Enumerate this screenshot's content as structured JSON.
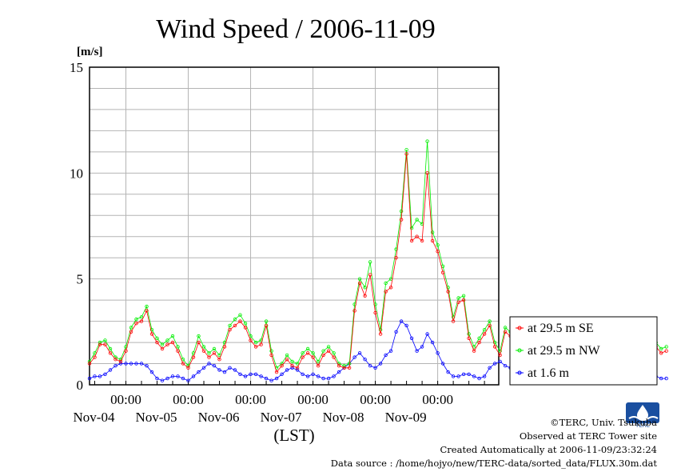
{
  "chart_data": {
    "type": "line",
    "title": "Wind Speed / 2006-11-09",
    "ylabel": "[m/s]",
    "xlabel": "(LST)",
    "ylim": [
      0,
      15
    ],
    "yticks": [
      "0",
      "5",
      "10",
      "15"
    ],
    "x_tick_times": [
      "00:00",
      "00:00",
      "00:00",
      "00:00",
      "00:00",
      "00:00"
    ],
    "x_tick_dates": [
      "Nov-04",
      "Nov-05",
      "Nov-06",
      "Nov-07",
      "Nov-08",
      "Nov-09"
    ],
    "x_range_days": [
      "2006-11-03T10:00",
      "2006-11-09T23:30"
    ],
    "grid": true,
    "legend_position": "outside-right",
    "series": [
      {
        "name": "at 29.5 m SE",
        "color": "#ff0000",
        "x_start": "2006-11-03T10:00",
        "x_step_hours": 2,
        "values": [
          1.0,
          1.3,
          1.9,
          1.9,
          1.5,
          1.2,
          1.1,
          1.6,
          2.5,
          2.9,
          3.0,
          3.5,
          2.4,
          2.0,
          1.7,
          1.9,
          2.0,
          1.6,
          1.0,
          0.8,
          1.3,
          2.0,
          1.6,
          1.3,
          1.5,
          1.2,
          1.8,
          2.6,
          2.8,
          3.0,
          2.7,
          2.1,
          1.8,
          1.9,
          2.8,
          1.4,
          0.6,
          0.9,
          1.2,
          0.9,
          0.8,
          1.3,
          1.5,
          1.3,
          0.9,
          1.4,
          1.6,
          1.3,
          0.9,
          0.8,
          0.8,
          3.5,
          4.8,
          4.2,
          5.2,
          3.4,
          2.4,
          4.4,
          4.6,
          6.0,
          7.8,
          10.9,
          6.8,
          7.0,
          6.8,
          10.0,
          6.8,
          6.3,
          5.3,
          4.4,
          3.0,
          3.9,
          4.0,
          2.2,
          1.6,
          2.0,
          2.4,
          2.8,
          1.8,
          1.4,
          2.5,
          2.3,
          2.0,
          2.7,
          1.6,
          1.3,
          2.4,
          1.8,
          1.3,
          1.2,
          0.6,
          0.4,
          1.2,
          1.6,
          1.9,
          2.4,
          1.6,
          1.5,
          1.6,
          1.1,
          1.3,
          1.2,
          2.2,
          2.7,
          2.5,
          2.2,
          2.8,
          2.6,
          2.5,
          1.8,
          1.5,
          1.6
        ]
      },
      {
        "name": "at 29.5 m NW",
        "color": "#00ee00",
        "x_start": "2006-11-03T10:00",
        "x_step_hours": 2,
        "values": [
          1.1,
          1.5,
          2.0,
          2.1,
          1.7,
          1.3,
          1.2,
          1.8,
          2.7,
          3.1,
          3.2,
          3.7,
          2.6,
          2.2,
          1.9,
          2.1,
          2.3,
          1.8,
          1.2,
          0.9,
          1.5,
          2.3,
          1.8,
          1.5,
          1.7,
          1.4,
          2.0,
          2.8,
          3.1,
          3.3,
          2.9,
          2.3,
          2.0,
          2.1,
          3.0,
          1.6,
          0.8,
          1.0,
          1.4,
          1.1,
          1.0,
          1.5,
          1.7,
          1.5,
          1.1,
          1.6,
          1.8,
          1.5,
          1.0,
          0.9,
          1.0,
          3.8,
          5.0,
          4.6,
          5.8,
          3.8,
          2.6,
          4.8,
          5.0,
          6.4,
          8.2,
          11.1,
          7.4,
          7.8,
          7.6,
          11.5,
          7.2,
          6.6,
          5.6,
          4.6,
          3.2,
          4.1,
          4.2,
          2.4,
          1.8,
          2.2,
          2.6,
          3.0,
          2.0,
          1.6,
          2.7,
          2.5,
          2.2,
          2.9,
          1.8,
          1.5,
          2.6,
          2.0,
          1.5,
          1.4,
          0.8,
          0.6,
          1.4,
          1.8,
          2.1,
          2.6,
          1.8,
          1.7,
          1.8,
          1.3,
          1.5,
          1.4,
          2.4,
          2.9,
          2.7,
          2.4,
          3.0,
          2.9,
          2.8,
          2.0,
          1.7,
          1.8
        ]
      },
      {
        "name": "at 1.6 m",
        "color": "#0000ff",
        "x_start": "2006-11-03T10:00",
        "x_step_hours": 2,
        "values": [
          0.3,
          0.4,
          0.4,
          0.5,
          0.7,
          0.9,
          1.0,
          1.0,
          1.0,
          1.0,
          1.0,
          0.9,
          0.6,
          0.3,
          0.2,
          0.3,
          0.4,
          0.4,
          0.3,
          0.2,
          0.4,
          0.6,
          0.8,
          1.0,
          0.9,
          0.7,
          0.6,
          0.8,
          0.7,
          0.5,
          0.4,
          0.5,
          0.5,
          0.4,
          0.3,
          0.2,
          0.3,
          0.5,
          0.7,
          0.8,
          0.7,
          0.5,
          0.4,
          0.5,
          0.4,
          0.3,
          0.3,
          0.4,
          0.6,
          0.8,
          1.0,
          1.3,
          1.5,
          1.2,
          0.9,
          0.8,
          1.0,
          1.4,
          1.6,
          2.5,
          3.0,
          2.8,
          2.2,
          1.6,
          1.8,
          2.4,
          2.0,
          1.5,
          1.0,
          0.6,
          0.4,
          0.4,
          0.5,
          0.5,
          0.4,
          0.3,
          0.4,
          0.8,
          1.0,
          1.1,
          0.9,
          0.8,
          0.7,
          0.6,
          0.5,
          0.6,
          0.7,
          0.5,
          0.3,
          0.2,
          0.2,
          0.2,
          0.3,
          0.3,
          0.2,
          0.2,
          0.3,
          0.5,
          0.7,
          0.9,
          0.9,
          0.7,
          0.6,
          0.5,
          0.4,
          0.3,
          0.4,
          0.5,
          0.6,
          0.4,
          0.3,
          0.3
        ]
      }
    ]
  },
  "footer": {
    "copyright": "©TERC, Univ. Tsukuba",
    "observed": "Observed at TERC Tower site",
    "created": "Created Automatically at 2006-11-09/23:32:24",
    "source": "Data source : /home/hojyo/new/TERC-data/sorted_data/FLUX.30m.dat"
  },
  "logo": {
    "icon": "terc-logo-icon",
    "text": "TERC",
    "color": "#1a4fa0"
  }
}
